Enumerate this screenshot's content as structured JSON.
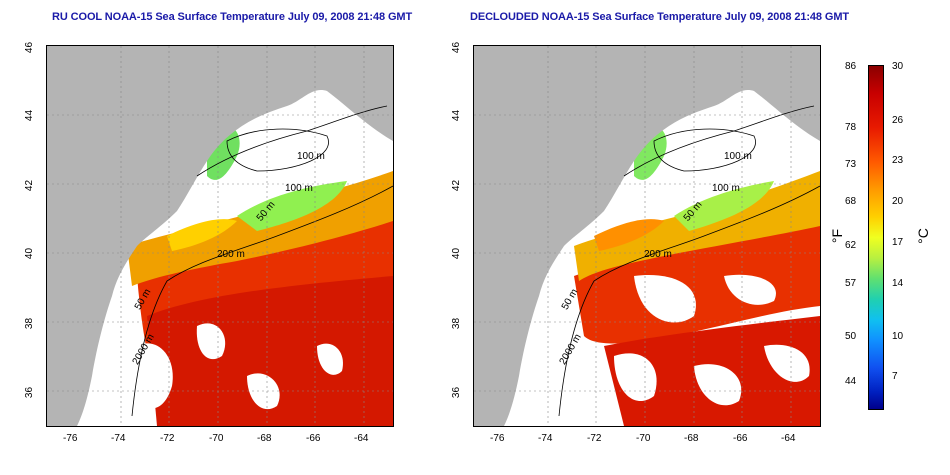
{
  "titles": {
    "left": "RU COOL NOAA-15 Sea Surface Temperature July 09, 2008 21:48 GMT",
    "right": "DECLOUDED NOAA-15 Sea Surface Temperature July 09, 2008 21:48 GMT"
  },
  "axes": {
    "x_ticks": [
      "-76",
      "-74",
      "-72",
      "-70",
      "-68",
      "-66",
      "-64"
    ],
    "y_ticks": [
      "46",
      "44",
      "42",
      "40",
      "38",
      "36"
    ],
    "lon_range": [
      -77.2,
      -63.0
    ],
    "lat_range": [
      35.0,
      46.0
    ]
  },
  "contour_labels": {
    "left": [
      "100 m",
      "100 m",
      "50 m",
      "200 m",
      "50 m",
      "2000 m"
    ],
    "right": [
      "100 m",
      "100 m",
      "50 m",
      "200 m",
      "50 m",
      "2000 m"
    ]
  },
  "colorbar": {
    "fahrenheit_labels": [
      "86",
      "78",
      "73",
      "68",
      "62",
      "57",
      "50",
      "44"
    ],
    "celsius_labels": [
      "30",
      "26",
      "23",
      "20",
      "17",
      "14",
      "10",
      "7"
    ],
    "unit_f": "°F",
    "unit_c": "°C"
  },
  "colors": {
    "land": "#b4b4b4",
    "title": "#1a1aa8",
    "no_data": "#ffffff"
  }
}
